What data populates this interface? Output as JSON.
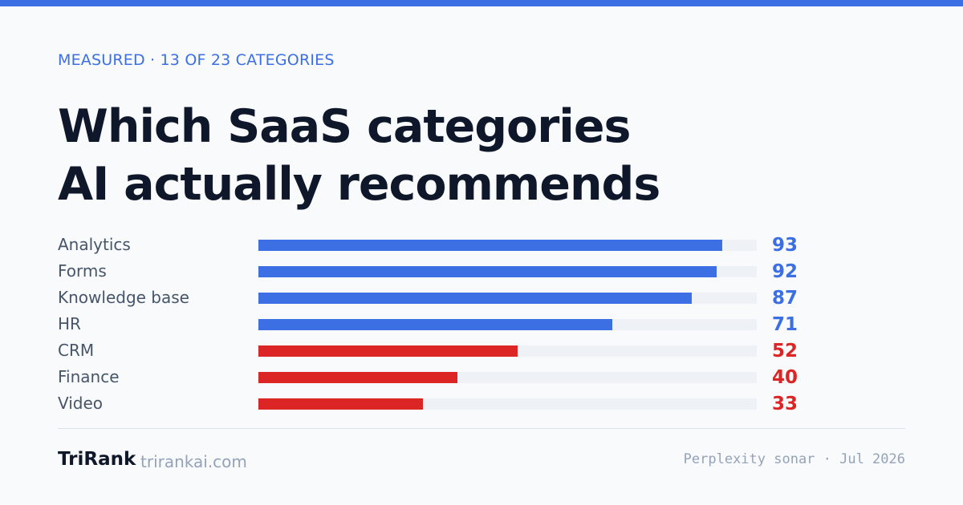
{
  "colors": {
    "accent": "#3b6fe3",
    "high": "#3b6fe3",
    "low": "#dc2626",
    "track": "#eef2f7"
  },
  "header": {
    "eyebrow": "MEASURED · 13 OF 23 CATEGORIES",
    "title_line1": "Which SaaS categories",
    "title_line2": "AI actually recommends"
  },
  "chart_data": {
    "type": "bar",
    "orientation": "horizontal",
    "categories": [
      "Analytics",
      "Forms",
      "Knowledge base",
      "HR",
      "CRM",
      "Finance",
      "Video"
    ],
    "values": [
      93,
      92,
      87,
      71,
      52,
      40,
      33
    ],
    "value_colors": [
      "#3b6fe3",
      "#3b6fe3",
      "#3b6fe3",
      "#3b6fe3",
      "#dc2626",
      "#dc2626",
      "#dc2626"
    ],
    "xlim": [
      0,
      100
    ],
    "grid": false,
    "title": "Which SaaS categories AI actually recommends"
  },
  "footer": {
    "brand": "TriRank",
    "domain": "trirankai.com",
    "source": "Perplexity sonar · Jul 2026"
  }
}
